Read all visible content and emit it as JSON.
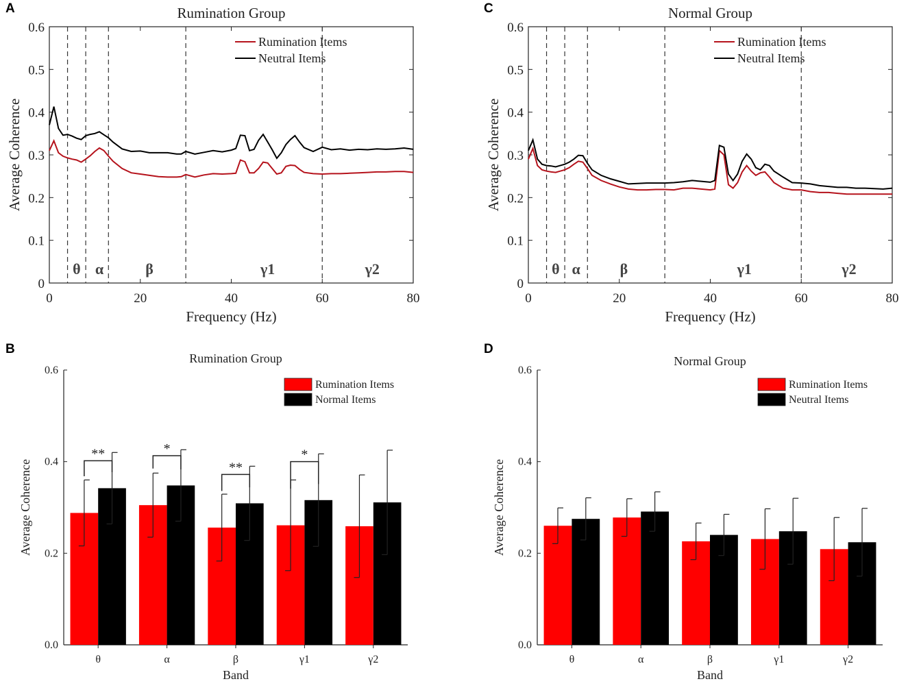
{
  "panels": {
    "A": "A",
    "B": "B",
    "C": "C",
    "D": "D"
  },
  "colors": {
    "rumination": "#b5121b",
    "neutral": "#000000",
    "bar_rumination": "#ff0000",
    "bar_other": "#000000"
  },
  "chart_data": [
    {
      "id": "A",
      "type": "line",
      "title": "Rumination Group",
      "xlabel": "Frequency (Hz)",
      "ylabel": "Average Coherence",
      "xlim": [
        0,
        80
      ],
      "ylim": [
        0,
        0.6
      ],
      "xticks": [
        "0",
        "20",
        "40",
        "60",
        "80"
      ],
      "yticks": [
        "0",
        "0.1",
        "0.2",
        "0.3",
        "0.4",
        "0.5",
        "0.6"
      ],
      "band_lines": [
        4,
        8,
        13,
        30,
        60
      ],
      "bands": [
        {
          "label": "θ",
          "x": 6
        },
        {
          "label": "α",
          "x": 11
        },
        {
          "label": "β",
          "x": 22
        },
        {
          "label": "γ1",
          "x": 48
        },
        {
          "label": "γ2",
          "x": 71
        }
      ],
      "legend": [
        "Rumination Items",
        "Neutral Items"
      ],
      "series": [
        {
          "name": "Rumination Items",
          "x": [
            0,
            1,
            2,
            3,
            4,
            5,
            6,
            7,
            8,
            9,
            10,
            11,
            12,
            13,
            14,
            16,
            18,
            20,
            22,
            24,
            26,
            28,
            29,
            30,
            32,
            34,
            36,
            38,
            40,
            41,
            42,
            43,
            44,
            45,
            46,
            47,
            48,
            49,
            50,
            51,
            52,
            53,
            54,
            55,
            56,
            58,
            60,
            62,
            64,
            66,
            68,
            70,
            72,
            74,
            76,
            78,
            80
          ],
          "y": [
            0.31,
            0.333,
            0.305,
            0.297,
            0.293,
            0.29,
            0.288,
            0.283,
            0.29,
            0.298,
            0.308,
            0.316,
            0.31,
            0.297,
            0.285,
            0.268,
            0.258,
            0.255,
            0.252,
            0.249,
            0.248,
            0.248,
            0.249,
            0.254,
            0.248,
            0.253,
            0.256,
            0.255,
            0.256,
            0.257,
            0.288,
            0.284,
            0.258,
            0.258,
            0.268,
            0.283,
            0.281,
            0.268,
            0.255,
            0.258,
            0.273,
            0.276,
            0.275,
            0.266,
            0.259,
            0.256,
            0.255,
            0.256,
            0.256,
            0.257,
            0.258,
            0.259,
            0.26,
            0.26,
            0.261,
            0.261,
            0.259
          ]
        },
        {
          "name": "Neutral Items",
          "x": [
            0,
            1,
            2,
            3,
            4,
            5,
            6,
            7,
            8,
            9,
            10,
            11,
            12,
            13,
            14,
            16,
            18,
            20,
            22,
            24,
            26,
            28,
            29,
            30,
            32,
            34,
            36,
            38,
            40,
            41,
            42,
            43,
            44,
            45,
            46,
            47,
            48,
            49,
            50,
            51,
            52,
            53,
            54,
            55,
            56,
            58,
            60,
            62,
            64,
            66,
            68,
            70,
            72,
            74,
            76,
            78,
            80
          ],
          "y": [
            0.37,
            0.413,
            0.362,
            0.346,
            0.348,
            0.344,
            0.339,
            0.336,
            0.345,
            0.348,
            0.35,
            0.354,
            0.347,
            0.34,
            0.33,
            0.314,
            0.308,
            0.309,
            0.305,
            0.305,
            0.305,
            0.302,
            0.302,
            0.308,
            0.302,
            0.306,
            0.31,
            0.307,
            0.311,
            0.315,
            0.346,
            0.345,
            0.31,
            0.313,
            0.334,
            0.348,
            0.33,
            0.312,
            0.292,
            0.305,
            0.324,
            0.336,
            0.345,
            0.33,
            0.317,
            0.308,
            0.318,
            0.312,
            0.314,
            0.311,
            0.313,
            0.312,
            0.314,
            0.313,
            0.314,
            0.316,
            0.313
          ]
        }
      ]
    },
    {
      "id": "C",
      "type": "line",
      "title": "Normal Group",
      "xlabel": "Frequency (Hz)",
      "ylabel": "Average Coherence",
      "xlim": [
        0,
        80
      ],
      "ylim": [
        0,
        0.6
      ],
      "xticks": [
        "0",
        "20",
        "40",
        "60",
        "80"
      ],
      "yticks": [
        "0",
        "0.1",
        "0.2",
        "0.3",
        "0.4",
        "0.5",
        "0.6"
      ],
      "band_lines": [
        4,
        8,
        13,
        30,
        60
      ],
      "bands": [
        {
          "label": "θ",
          "x": 6
        },
        {
          "label": "α",
          "x": 10.5
        },
        {
          "label": "β",
          "x": 21
        },
        {
          "label": "γ1",
          "x": 47.5
        },
        {
          "label": "γ2",
          "x": 70.5
        }
      ],
      "legend": [
        "Rumination Items",
        "Neutral Items"
      ],
      "series": [
        {
          "name": "Rumination Items",
          "x": [
            0,
            1,
            2,
            3,
            4,
            5,
            6,
            7,
            8,
            9,
            10,
            11,
            12,
            13,
            14,
            16,
            18,
            20,
            22,
            24,
            26,
            28,
            30,
            32,
            34,
            36,
            38,
            40,
            41,
            42,
            43,
            44,
            45,
            46,
            47,
            48,
            49,
            50,
            51,
            52,
            53,
            54,
            56,
            58,
            60,
            62,
            64,
            66,
            68,
            70,
            72,
            74,
            76,
            78,
            80
          ],
          "y": [
            0.29,
            0.315,
            0.275,
            0.265,
            0.262,
            0.26,
            0.259,
            0.262,
            0.265,
            0.27,
            0.278,
            0.285,
            0.283,
            0.268,
            0.252,
            0.24,
            0.232,
            0.225,
            0.22,
            0.218,
            0.218,
            0.219,
            0.219,
            0.218,
            0.222,
            0.222,
            0.22,
            0.218,
            0.22,
            0.31,
            0.3,
            0.23,
            0.222,
            0.235,
            0.26,
            0.275,
            0.262,
            0.252,
            0.258,
            0.26,
            0.248,
            0.235,
            0.222,
            0.218,
            0.218,
            0.214,
            0.212,
            0.212,
            0.21,
            0.208,
            0.208,
            0.208,
            0.208,
            0.208,
            0.208
          ]
        },
        {
          "name": "Neutral Items",
          "x": [
            0,
            1,
            2,
            3,
            4,
            5,
            6,
            7,
            8,
            9,
            10,
            11,
            12,
            13,
            14,
            16,
            18,
            20,
            22,
            24,
            26,
            28,
            30,
            32,
            34,
            36,
            38,
            40,
            41,
            42,
            43,
            44,
            45,
            46,
            47,
            48,
            49,
            50,
            51,
            52,
            53,
            54,
            56,
            58,
            60,
            62,
            64,
            66,
            68,
            70,
            72,
            74,
            76,
            78,
            80
          ],
          "y": [
            0.31,
            0.335,
            0.29,
            0.278,
            0.275,
            0.274,
            0.272,
            0.275,
            0.278,
            0.283,
            0.29,
            0.299,
            0.298,
            0.28,
            0.265,
            0.252,
            0.244,
            0.238,
            0.232,
            0.233,
            0.234,
            0.234,
            0.234,
            0.235,
            0.237,
            0.24,
            0.238,
            0.236,
            0.24,
            0.322,
            0.318,
            0.255,
            0.24,
            0.255,
            0.285,
            0.302,
            0.29,
            0.27,
            0.265,
            0.278,
            0.275,
            0.262,
            0.248,
            0.235,
            0.234,
            0.232,
            0.228,
            0.226,
            0.224,
            0.224,
            0.222,
            0.222,
            0.221,
            0.22,
            0.222
          ]
        }
      ]
    },
    {
      "id": "B",
      "type": "bar",
      "title": "Rumination Group",
      "xlabel": "Band",
      "ylabel": "Average Coherence",
      "ylim": [
        0,
        0.6
      ],
      "yticks": [
        "0.0",
        "0.2",
        "0.4",
        "0.6"
      ],
      "categories": [
        "θ",
        "α",
        "β",
        "γ1",
        "γ2"
      ],
      "legend": [
        "Rumination Items",
        "Normal Items"
      ],
      "series": [
        {
          "name": "Rumination Items",
          "values": [
            0.288,
            0.305,
            0.256,
            0.261,
            0.259
          ],
          "errors": [
            0.072,
            0.07,
            0.073,
            0.099,
            0.112
          ]
        },
        {
          "name": "Normal Items",
          "values": [
            0.342,
            0.348,
            0.309,
            0.316,
            0.311
          ],
          "errors": [
            0.078,
            0.078,
            0.081,
            0.101,
            0.114
          ]
        }
      ],
      "significance": [
        {
          "category": 0,
          "label": "**",
          "y": 0.402
        },
        {
          "category": 1,
          "label": "*",
          "y": 0.413
        },
        {
          "category": 2,
          "label": "**",
          "y": 0.372
        },
        {
          "category": 3,
          "label": "*",
          "y": 0.4
        }
      ]
    },
    {
      "id": "D",
      "type": "bar",
      "title": "Normal Group",
      "xlabel": "Band",
      "ylabel": "Average Coherence",
      "ylim": [
        0,
        0.6
      ],
      "yticks": [
        "0.0",
        "0.2",
        "0.4",
        "0.6"
      ],
      "categories": [
        "θ",
        "α",
        "β",
        "γ1",
        "γ2"
      ],
      "legend": [
        "Rumination Items",
        "Neutral Items"
      ],
      "series": [
        {
          "name": "Rumination Items",
          "values": [
            0.26,
            0.278,
            0.226,
            0.231,
            0.209
          ],
          "errors": [
            0.039,
            0.041,
            0.04,
            0.066,
            0.069
          ]
        },
        {
          "name": "Neutral Items",
          "values": [
            0.275,
            0.291,
            0.24,
            0.248,
            0.224
          ],
          "errors": [
            0.046,
            0.043,
            0.045,
            0.072,
            0.074
          ]
        }
      ],
      "significance": []
    }
  ]
}
